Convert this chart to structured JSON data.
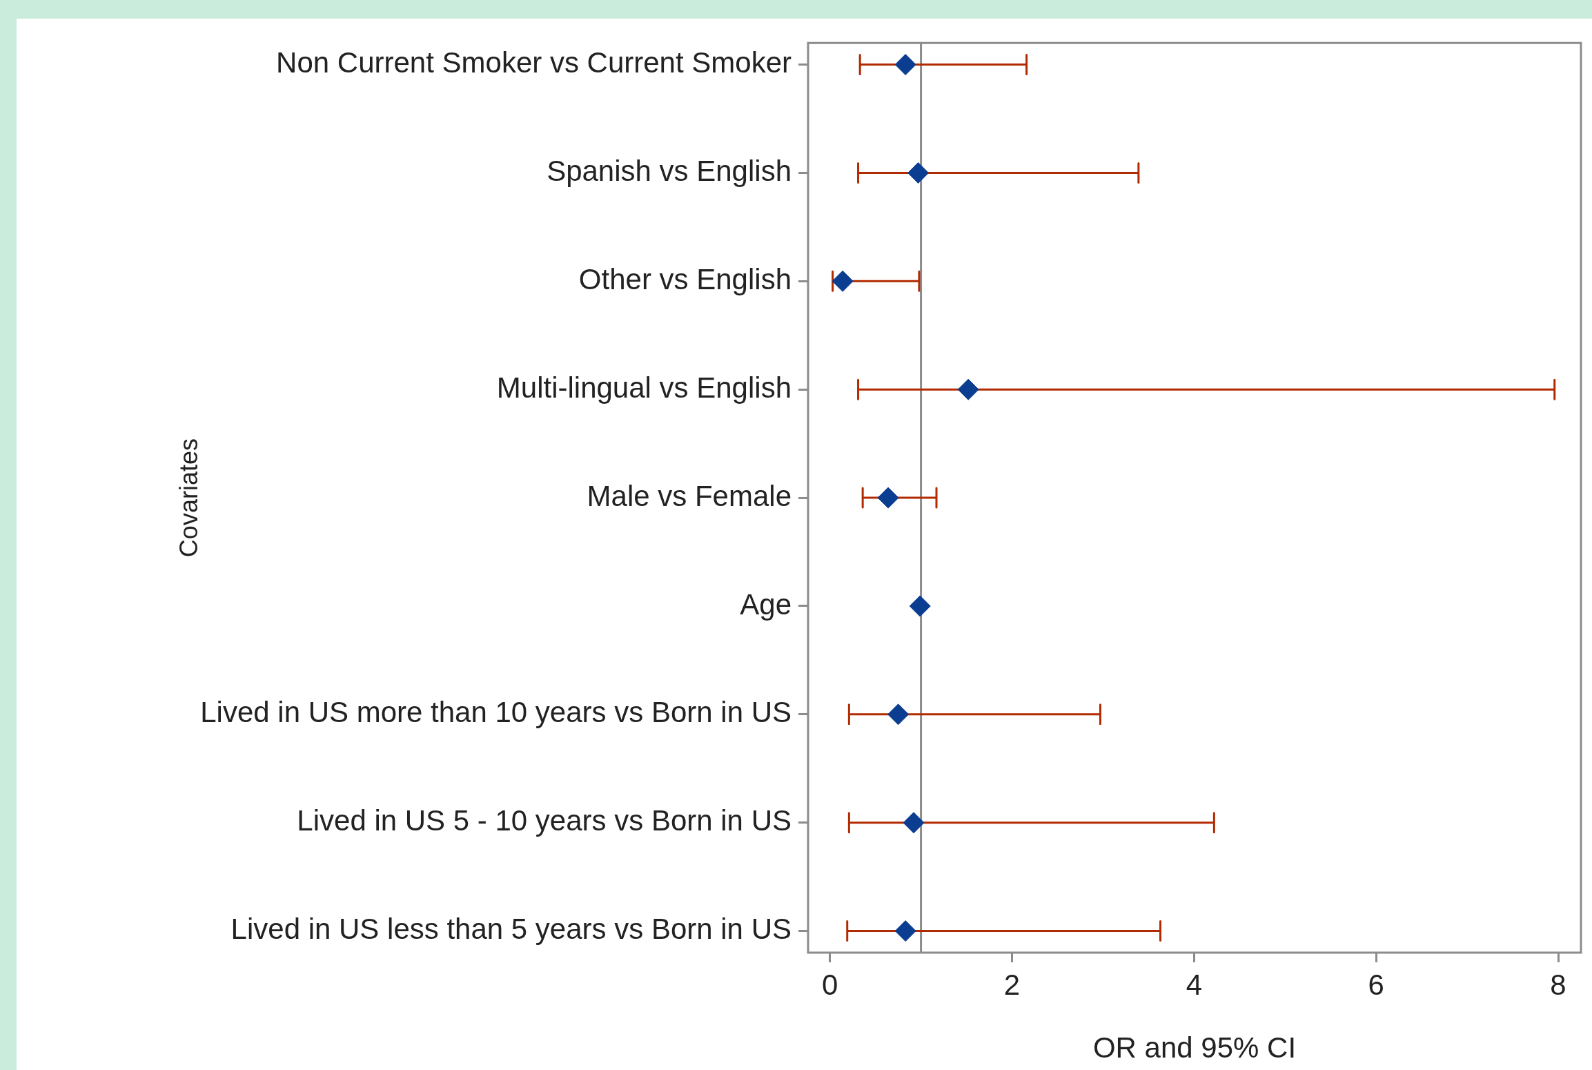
{
  "chart_data": {
    "type": "scatter",
    "orientation": "horizontal",
    "xlabel": "OR and 95% CI",
    "ylabel": "Covariates",
    "categories": [
      "Non Current Smoker vs Current Smoker",
      "Spanish vs English",
      "Other vs English",
      "Multi-lingual vs English",
      "Male vs Female",
      "Age",
      "Lived in US more than 10 years vs Born in US",
      "Lived in US 5 - 10 years vs Born in US",
      "Lived in US less than 5 years vs Born in US"
    ],
    "values": [
      0.83,
      0.97,
      0.14,
      1.52,
      0.64,
      0.99,
      0.75,
      0.92,
      0.83
    ],
    "errors": [
      [
        0.33,
        2.16
      ],
      [
        0.31,
        3.39
      ],
      [
        0.03,
        0.98
      ],
      [
        0.31,
        7.96
      ],
      [
        0.36,
        1.17
      ],
      null,
      [
        0.21,
        2.97
      ],
      [
        0.21,
        4.22
      ],
      [
        0.19,
        3.63
      ]
    ],
    "color": "#0b3d91",
    "marker": "diamond",
    "xlim": [
      -0.24,
      8.25
    ],
    "xticks": [
      0,
      2,
      4,
      6,
      8
    ],
    "ref_lines": [
      {
        "axis": "x",
        "value": 1
      }
    ]
  }
}
